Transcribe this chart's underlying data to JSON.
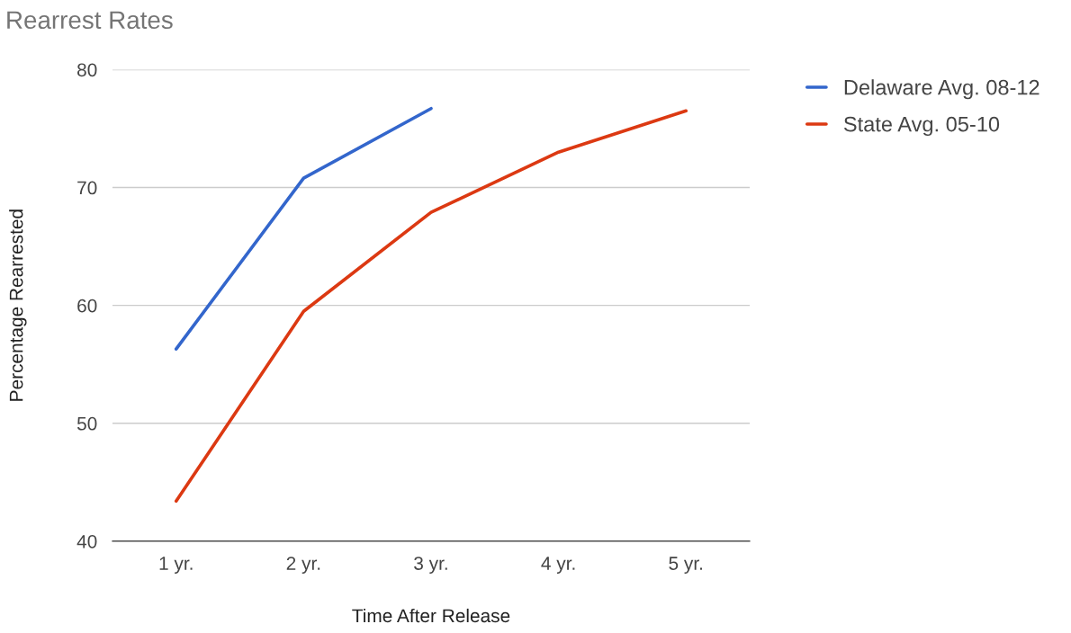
{
  "chart_data": {
    "type": "line",
    "title": "Rearrest Rates",
    "xlabel": "Time After Release",
    "ylabel": "Percentage Rearrested",
    "categories": [
      "1 yr.",
      "2 yr.",
      "3 yr.",
      "4 yr.",
      "5 yr."
    ],
    "series": [
      {
        "name": "Delaware Avg. 08-12",
        "color": "#3366cc",
        "values": [
          56.3,
          70.8,
          76.7,
          null,
          null
        ]
      },
      {
        "name": "State Avg. 05-10",
        "color": "#dc3912",
        "values": [
          43.4,
          59.5,
          67.9,
          73.0,
          76.5
        ]
      }
    ],
    "ylim": [
      40,
      80
    ],
    "yticks": [
      40,
      50,
      60,
      70,
      80
    ],
    "grid": "y",
    "legend": "top right",
    "marker": "none",
    "line_style": "solid"
  }
}
